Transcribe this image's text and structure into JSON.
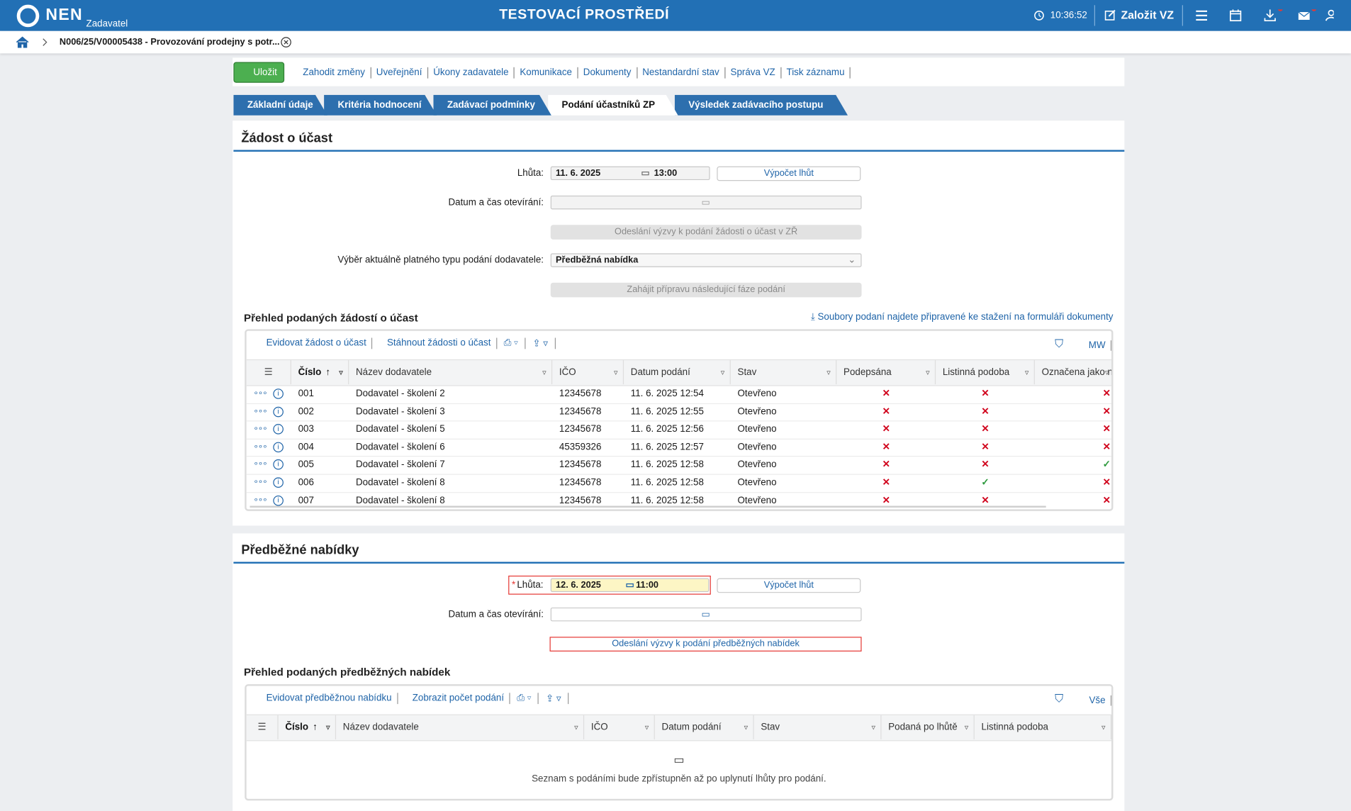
{
  "header": {
    "logo": "NEN",
    "role": "Zadavatel",
    "title": "TESTOVACÍ PROSTŘEDÍ",
    "time": "10:36:52",
    "create": "Založit VZ"
  },
  "breadcrumb": "N006/25/V00005438 - Provozování prodejny s potr...",
  "toolbar": [
    "Uložit",
    "Zahodit změny",
    "Uveřejnění",
    "Úkony zadavatele",
    "Komunikace",
    "Dokumenty",
    "Nestandardní stav",
    "Správa VZ",
    "Tisk záznamu"
  ],
  "tabs": [
    "Základní údaje",
    "Kritéria hodnocení",
    "Zadávací podmínky",
    "Podání účastníků ZP",
    "Výsledek zadávacího postupu"
  ],
  "active_tab": 3,
  "section1": {
    "title": "Žádost o účast",
    "deadline_label": "Lhůta:",
    "deadline_date": "11. 6. 2025",
    "deadline_time": "13:00",
    "calc_button": "Výpočet lhůt",
    "opening_label": "Datum a čas otevírání:",
    "send_button": "Odeslání výzvy k podání žádosti o účast v ZŘ",
    "type_label": "Výběr aktuálně platného typu podání dodavatele:",
    "type_value": "Předběžná nabídka",
    "next_button": "Zahájit přípravu následující fáze podání",
    "grid": {
      "title": "Přehled podaných žádostí o účast",
      "link": "Soubory podaní najdete připravené ke stažení na formuláři dokumenty",
      "actions": [
        "Evidovat žádost o účast",
        "Stáhnout žádosti o účast"
      ],
      "right_label": "MW",
      "columns": [
        "Číslo",
        "Název dodavatele",
        "IČO",
        "Datum podání",
        "Stav",
        "Podepsána",
        "Listinná podoba",
        "Označena jako ne"
      ],
      "rows": [
        [
          "001",
          "Dodavatel - školení 2",
          "12345678",
          "11. 6. 2025 12:54",
          "Otevřeno",
          false,
          false,
          false
        ],
        [
          "002",
          "Dodavatel - školení 3",
          "12345678",
          "11. 6. 2025 12:55",
          "Otevřeno",
          false,
          false,
          false
        ],
        [
          "003",
          "Dodavatel - školení 5",
          "12345678",
          "11. 6. 2025 12:56",
          "Otevřeno",
          false,
          false,
          false
        ],
        [
          "004",
          "Dodavatel - školení 6",
          "45359326",
          "11. 6. 2025 12:57",
          "Otevřeno",
          false,
          false,
          false
        ],
        [
          "005",
          "Dodavatel - školení 7",
          "12345678",
          "11. 6. 2025 12:58",
          "Otevřeno",
          false,
          false,
          true
        ],
        [
          "006",
          "Dodavatel - školení 8",
          "12345678",
          "11. 6. 2025 12:58",
          "Otevřeno",
          false,
          true,
          false
        ],
        [
          "007",
          "Dodavatel - školení 8",
          "12345678",
          "11. 6. 2025 12:58",
          "Otevřeno",
          false,
          false,
          false
        ]
      ]
    }
  },
  "section2": {
    "title": "Předběžné nabídky",
    "required_mark": "*",
    "deadline_label": "Lhůta:",
    "deadline_date": "12. 6. 2025",
    "deadline_time": "11:00",
    "calc_button": "Výpočet lhůt",
    "opening_label": "Datum a čas otevírání:",
    "send_button": "Odeslání výzvy k podání předběžných nabídek",
    "grid": {
      "title": "Přehled podaných předběžných nabídek",
      "actions": [
        "Evidovat předběžnou nabídku",
        "Zobrazit počet podání"
      ],
      "right_label": "Vše",
      "columns": [
        "Číslo",
        "Název dodavatele",
        "IČO",
        "Datum podání",
        "Stav",
        "Podaná po lhůtě",
        "Listinná podoba"
      ],
      "empty": "Seznam s podáními bude zpřístupněn až po uplynutí lhůty pro podání."
    }
  }
}
